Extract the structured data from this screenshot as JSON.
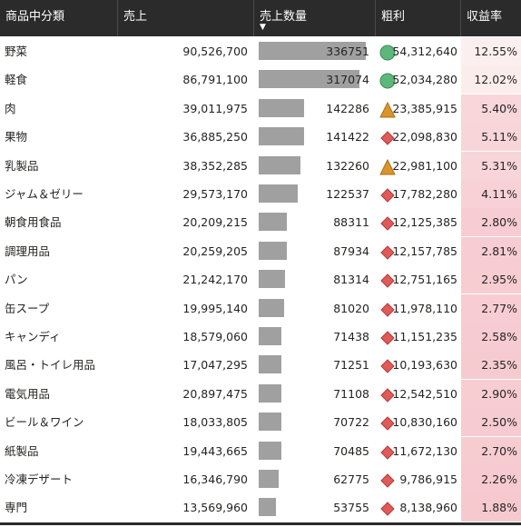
{
  "headers": {
    "category": "商品中分類",
    "sales": "売上",
    "quantity": "売上数量",
    "gross_profit": "粗利",
    "margin": "収益率",
    "sort_indicator": "▼"
  },
  "colors": {
    "header_bg": "#2b2b2b",
    "bar": "#a0a0a0",
    "good": "#5cb87a",
    "neutral": "#d9952b",
    "bad": "#e05a5a",
    "margin_low": "#f6c9cf",
    "margin_high": "#fcefef"
  },
  "rows": [
    {
      "category": "野菜",
      "sales": "90,526,700",
      "quantity": 336751,
      "quantity_text": "336751",
      "gross_profit": "54,312,640",
      "status": "good",
      "status_icon": "circle-icon",
      "margin": "12.55%"
    },
    {
      "category": "軽食",
      "sales": "86,791,100",
      "quantity": 317074,
      "quantity_text": "317074",
      "gross_profit": "52,034,280",
      "status": "good",
      "status_icon": "circle-icon",
      "margin": "12.02%"
    },
    {
      "category": "肉",
      "sales": "39,011,975",
      "quantity": 142286,
      "quantity_text": "142286",
      "gross_profit": "23,385,915",
      "status": "neutral",
      "status_icon": "triangle-icon",
      "margin": "5.40%"
    },
    {
      "category": "果物",
      "sales": "36,885,250",
      "quantity": 141422,
      "quantity_text": "141422",
      "gross_profit": "22,098,830",
      "status": "bad",
      "status_icon": "diamond-icon",
      "margin": "5.11%"
    },
    {
      "category": "乳製品",
      "sales": "38,352,285",
      "quantity": 132260,
      "quantity_text": "132260",
      "gross_profit": "22,981,100",
      "status": "neutral",
      "status_icon": "triangle-icon",
      "margin": "5.31%"
    },
    {
      "category": "ジャム＆ゼリー",
      "sales": "29,573,170",
      "quantity": 122537,
      "quantity_text": "122537",
      "gross_profit": "17,782,280",
      "status": "bad",
      "status_icon": "diamond-icon",
      "margin": "4.11%"
    },
    {
      "category": "朝食用食品",
      "sales": "20,209,215",
      "quantity": 88311,
      "quantity_text": "88311",
      "gross_profit": "12,125,385",
      "status": "bad",
      "status_icon": "diamond-icon",
      "margin": "2.80%"
    },
    {
      "category": "調理用品",
      "sales": "20,259,205",
      "quantity": 87934,
      "quantity_text": "87934",
      "gross_profit": "12,157,785",
      "status": "bad",
      "status_icon": "diamond-icon",
      "margin": "2.81%"
    },
    {
      "category": "パン",
      "sales": "21,242,170",
      "quantity": 81314,
      "quantity_text": "81314",
      "gross_profit": "12,751,165",
      "status": "bad",
      "status_icon": "diamond-icon",
      "margin": "2.95%"
    },
    {
      "category": "缶スープ",
      "sales": "19,995,140",
      "quantity": 81020,
      "quantity_text": "81020",
      "gross_profit": "11,978,110",
      "status": "bad",
      "status_icon": "diamond-icon",
      "margin": "2.77%"
    },
    {
      "category": "キャンディ",
      "sales": "18,579,060",
      "quantity": 71438,
      "quantity_text": "71438",
      "gross_profit": "11,151,235",
      "status": "bad",
      "status_icon": "diamond-icon",
      "margin": "2.58%"
    },
    {
      "category": "風呂・トイレ用品",
      "sales": "17,047,295",
      "quantity": 71251,
      "quantity_text": "71251",
      "gross_profit": "10,193,630",
      "status": "bad",
      "status_icon": "diamond-icon",
      "margin": "2.35%"
    },
    {
      "category": "電気用品",
      "sales": "20,897,475",
      "quantity": 71108,
      "quantity_text": "71108",
      "gross_profit": "12,542,510",
      "status": "bad",
      "status_icon": "diamond-icon",
      "margin": "2.90%"
    },
    {
      "category": "ビール＆ワイン",
      "sales": "18,033,805",
      "quantity": 70722,
      "quantity_text": "70722",
      "gross_profit": "10,830,160",
      "status": "bad",
      "status_icon": "diamond-icon",
      "margin": "2.50%"
    },
    {
      "category": "紙製品",
      "sales": "19,443,665",
      "quantity": 70485,
      "quantity_text": "70485",
      "gross_profit": "11,672,130",
      "status": "bad",
      "status_icon": "diamond-icon",
      "margin": "2.70%"
    },
    {
      "category": "冷凍デザート",
      "sales": "16,346,790",
      "quantity": 62775,
      "quantity_text": "62775",
      "gross_profit": "9,786,915",
      "status": "bad",
      "status_icon": "diamond-icon",
      "margin": "2.26%"
    },
    {
      "category": "専門",
      "sales": "13,569,960",
      "quantity": 53755,
      "quantity_text": "53755",
      "gross_profit": "8,138,960",
      "status": "bad",
      "status_icon": "diamond-icon",
      "margin": "1.88%"
    }
  ]
}
